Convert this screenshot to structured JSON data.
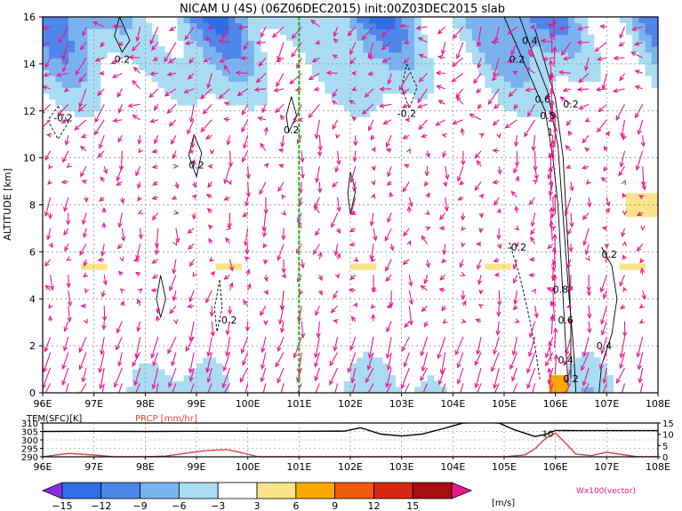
{
  "chart_data": [
    {
      "type": "heatmap",
      "title": "NICAM U (4S) (06Z06DEC2015) init:00Z03DEC2015 slab",
      "xlabel": "",
      "ylabel": "ALTITUDE [km]",
      "xlim": [
        96,
        108
      ],
      "ylim": [
        0,
        16
      ],
      "x_ticks": [
        "96E",
        "97E",
        "98E",
        "99E",
        "100E",
        "101E",
        "102E",
        "103E",
        "104E",
        "105E",
        "106E",
        "107E",
        "108E"
      ],
      "y_ticks": [
        "0",
        "2",
        "4",
        "6",
        "8",
        "10",
        "12",
        "14",
        "16"
      ],
      "grid": true,
      "shaded_field": "U [m/s]",
      "contour_labels": [
        {
          "text": "0.2",
          "x": 97.55,
          "y": 14.2
        },
        {
          "text": "-0.2",
          "x": 96.4,
          "y": 11.7
        },
        {
          "text": "0.2",
          "x": 99.0,
          "y": 9.7
        },
        {
          "text": "0.2",
          "x": 100.85,
          "y": 11.2
        },
        {
          "text": "-0.2",
          "x": 103.1,
          "y": 11.9
        },
        {
          "text": "0.4",
          "x": 105.5,
          "y": 15.0
        },
        {
          "text": "0.2",
          "x": 105.25,
          "y": 14.2
        },
        {
          "text": "0.6",
          "x": 105.75,
          "y": 12.5
        },
        {
          "text": "0.2",
          "x": 106.3,
          "y": 12.3
        },
        {
          "text": "0.8",
          "x": 105.85,
          "y": 11.8
        },
        {
          "text": "1",
          "x": 105.9,
          "y": 11.1
        },
        {
          "text": "-0.2",
          "x": 99.6,
          "y": 3.1
        },
        {
          "text": "-0.2",
          "x": 105.25,
          "y": 6.2
        },
        {
          "text": "0.2",
          "x": 107.05,
          "y": 5.9
        },
        {
          "text": "0.8",
          "x": 106.1,
          "y": 4.4
        },
        {
          "text": "0.6",
          "x": 106.2,
          "y": 3.1
        },
        {
          "text": "0.4",
          "x": 106.2,
          "y": 1.4
        },
        {
          "text": "0.4",
          "x": 106.95,
          "y": 2.0
        },
        {
          "text": "0.2",
          "x": 106.3,
          "y": 0.6
        }
      ],
      "marker_line": {
        "x": 101.0,
        "color": "#1db01d"
      }
    },
    {
      "type": "line",
      "title": "",
      "xlim": [
        96,
        108
      ],
      "left_axis_label": "TEM(SFC)[K]",
      "left_axis_ticks": [
        "290",
        "295",
        "300",
        "305",
        "310"
      ],
      "left_ylim": [
        290,
        310
      ],
      "right_axis_label": "PRCP [mm/hr]",
      "right_axis_ticks": [
        "0",
        "5",
        "10",
        "15"
      ],
      "right_ylim": [
        0,
        15
      ],
      "series": [
        {
          "name": "TEM(SFC)[K]",
          "color": "#000000",
          "x": [
            96,
            97,
            98,
            99,
            100,
            101,
            101.9,
            102.2,
            102.6,
            103,
            103.4,
            103.8,
            104.2,
            104.6,
            104.9,
            105.2,
            105.6,
            105.8,
            106,
            106.4,
            107,
            108
          ],
          "y": [
            305,
            305.1,
            305,
            305.1,
            305.1,
            305.1,
            305.2,
            307.2,
            303.4,
            302.3,
            303.5,
            306.6,
            310,
            310.3,
            310,
            306,
            302,
            303.2,
            305.6,
            305.5,
            305.5,
            305.5
          ]
        },
        {
          "name": "PRCP [mm/hr]",
          "color": "#e04040",
          "x": [
            96,
            96.5,
            97,
            97.4,
            98,
            98.4,
            98.8,
            99.2,
            99.6,
            100,
            100.2,
            100.6,
            101,
            103,
            105,
            105.4,
            105.6,
            105.8,
            106.0,
            106.2,
            106.4,
            106.7,
            107.0,
            107.3,
            107.6,
            108
          ],
          "y": [
            0,
            1.5,
            0.8,
            0,
            0,
            0.3,
            1.6,
            2.8,
            3.2,
            1.2,
            0,
            0,
            0,
            0,
            0,
            0.8,
            3.5,
            8,
            10.5,
            6,
            1.2,
            0.5,
            2,
            1,
            0,
            0
          ]
        }
      ],
      "annotations": [
        {
          "text": "10",
          "x": 105.85,
          "y": 10
        }
      ],
      "x_ticks": [
        "96E",
        "97E",
        "98E",
        "99E",
        "100E",
        "101E",
        "102E",
        "103E",
        "104E",
        "105E",
        "106E",
        "107E",
        "108E"
      ]
    }
  ],
  "colorbar": {
    "units": "[m/s]",
    "labels": [
      "-15",
      "-12",
      "-9",
      "-6",
      "-3",
      "3",
      "6",
      "9",
      "12",
      "15"
    ],
    "colors": [
      "#8d2be2",
      "#2f6ee5",
      "#4f86ea",
      "#7ab2f0",
      "#a9dcf3",
      "#ffffff",
      "#fbe38a",
      "#f8a800",
      "#f05a10",
      "#d42810",
      "#a80e10",
      "#e7198c"
    ]
  },
  "vector_label": "Wx100(vector)",
  "colors": {
    "arrow": "#e7198c",
    "contour": "#000000",
    "grid": "#888888"
  }
}
